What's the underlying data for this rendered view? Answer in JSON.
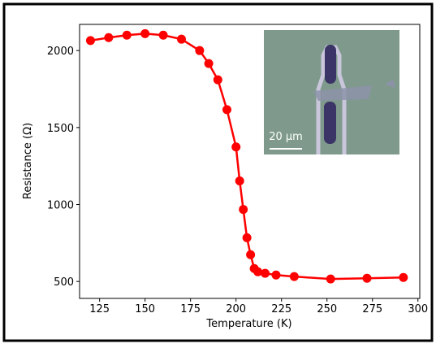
{
  "chart_data": {
    "type": "line",
    "xlabel": "Temperature (K)",
    "ylabel": "Resistance (Ω)",
    "x": [
      120,
      130,
      140,
      150,
      160,
      170,
      180,
      185,
      190,
      195,
      200,
      202,
      204,
      206,
      208,
      210,
      212,
      216,
      222,
      232,
      252,
      272,
      292
    ],
    "series": [
      {
        "color": "#ff0000",
        "values": [
          2065,
          2084,
          2100,
          2110,
          2100,
          2074,
          2000,
          1916,
          1810,
          1616,
          1374,
          1153,
          968,
          784,
          674,
          584,
          563,
          553,
          542,
          532,
          516,
          521,
          526
        ]
      }
    ],
    "xlim": [
      114,
      301
    ],
    "xticks": [
      125,
      150,
      175,
      200,
      225,
      250,
      275,
      300
    ],
    "ylim": [
      390,
      2170
    ],
    "yticks": [
      500,
      1000,
      1500,
      2000
    ],
    "inset": {
      "scale_label": "20 µm"
    }
  }
}
